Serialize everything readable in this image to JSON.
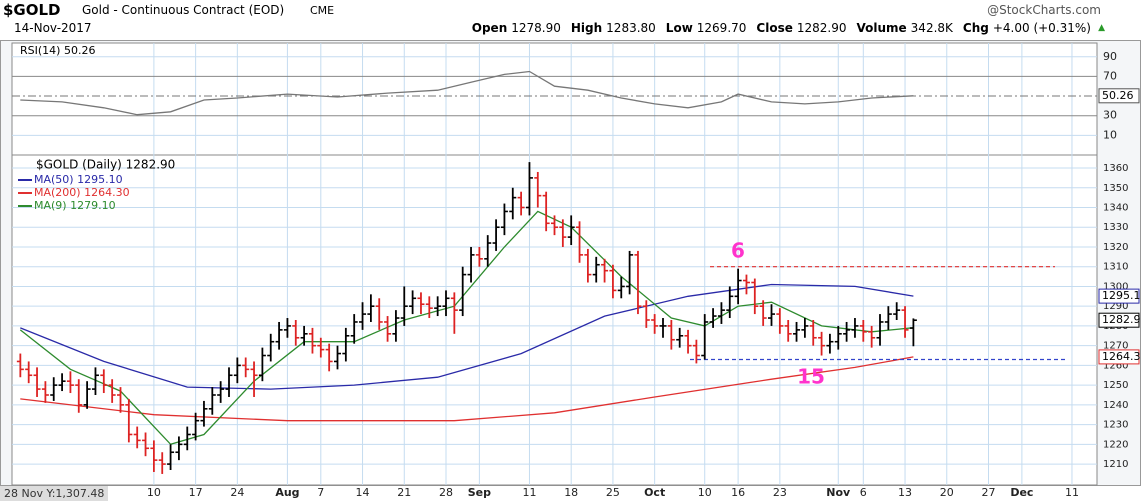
{
  "header": {
    "symbol": "$GOLD",
    "name": "Gold - Continuous Contract (EOD)",
    "exchange": "CME",
    "source": "@StockCharts.com",
    "date": "14-Nov-2017",
    "quote": [
      {
        "label": "Open",
        "value": "1278.90"
      },
      {
        "label": "High",
        "value": "1283.80"
      },
      {
        "label": "Low",
        "value": "1269.70"
      },
      {
        "label": "Close",
        "value": "1282.90"
      },
      {
        "label": "Volume",
        "value": "342.8K"
      },
      {
        "label": "Chg",
        "value": "+4.00 (+0.31%)"
      }
    ],
    "cursor": "28 Nov Y:1,307.48"
  },
  "chart_data": [
    {
      "type": "line",
      "title": "RSI(14) 50.26",
      "xlim": [
        -1,
        129
      ],
      "ylim": [
        -10,
        104
      ],
      "yticks": [
        90,
        70,
        50,
        30,
        10
      ],
      "grid": true,
      "series": [
        {
          "name": "RSI(14)",
          "color": "#777777",
          "tag": "50.26",
          "x": [
            0,
            5,
            10,
            14,
            18,
            22,
            26,
            32,
            38,
            44,
            50,
            54,
            58,
            61,
            64,
            68,
            72,
            76,
            80,
            84,
            86,
            90,
            94,
            98,
            102,
            107
          ],
          "values": [
            46,
            44,
            38,
            31,
            34,
            46,
            48,
            52,
            49,
            53,
            56,
            64,
            72,
            75,
            60,
            56,
            48,
            42,
            38,
            44,
            52,
            44,
            42,
            44,
            48,
            50.26
          ]
        }
      ]
    },
    {
      "type": "ohlc",
      "title": "$GOLD (Daily) 1282.90",
      "close_tag": "1282.9",
      "up_color": "#000000",
      "down_color": "#dd2222",
      "xlim": [
        -1,
        129
      ],
      "ylim": [
        1199.4,
        1366.6
      ],
      "yticks": [
        1360,
        1350,
        1340,
        1330,
        1320,
        1310,
        1300,
        1290,
        1280,
        1270,
        1260,
        1250,
        1240,
        1230,
        1220,
        1210
      ],
      "xticks": [
        {
          "value": 16,
          "label": "10"
        },
        {
          "value": 21,
          "label": "17"
        },
        {
          "value": 26,
          "label": "24"
        },
        {
          "value": 32,
          "label": "Aug"
        },
        {
          "value": 36,
          "label": "7"
        },
        {
          "value": 41,
          "label": "14"
        },
        {
          "value": 46,
          "label": "21"
        },
        {
          "value": 51,
          "label": "28"
        },
        {
          "value": 55,
          "label": "Sep"
        },
        {
          "value": 61,
          "label": "11"
        },
        {
          "value": 66,
          "label": "18"
        },
        {
          "value": 71,
          "label": "25"
        },
        {
          "value": 76,
          "label": "Oct"
        },
        {
          "value": 82,
          "label": "10"
        },
        {
          "value": 86,
          "label": "16"
        },
        {
          "value": 91,
          "label": "23"
        },
        {
          "value": 98,
          "label": "Nov"
        },
        {
          "value": 101,
          "label": "6"
        },
        {
          "value": 106,
          "label": "13"
        },
        {
          "value": 111,
          "label": "20"
        },
        {
          "value": 116,
          "label": "27"
        },
        {
          "value": 120,
          "label": "Dec"
        },
        {
          "value": 126,
          "label": "11"
        }
      ],
      "grid": true,
      "open": [
        1262,
        1258,
        1255,
        1248,
        1245,
        1250,
        1252,
        1250,
        1240,
        1248,
        1255,
        1250,
        1245,
        1240,
        1225,
        1222,
        1218,
        1212,
        1210,
        1216,
        1220,
        1225,
        1232,
        1238,
        1245,
        1248,
        1255,
        1260,
        1258,
        1255,
        1265,
        1272,
        1278,
        1280,
        1274,
        1276,
        1270,
        1268,
        1262,
        1266,
        1275,
        1282,
        1286,
        1290,
        1282,
        1276,
        1284,
        1290,
        1294,
        1291,
        1289,
        1290,
        1294,
        1288,
        1306,
        1316,
        1314,
        1322,
        1330,
        1338,
        1345,
        1340,
        1355,
        1346,
        1332,
        1330,
        1325,
        1330,
        1316,
        1306,
        1311,
        1308,
        1298,
        1300,
        1316,
        1290,
        1283,
        1280,
        1280,
        1273,
        1275,
        1270,
        1265,
        1282,
        1285,
        1288,
        1295,
        1303,
        1302,
        1290,
        1284,
        1286,
        1280,
        1276,
        1278,
        1280,
        1274,
        1270,
        1272,
        1276,
        1278,
        1280,
        1277,
        1274,
        1282,
        1286,
        1288,
        1278.9
      ],
      "high": [
        1266,
        1262,
        1259,
        1252,
        1254,
        1256,
        1257,
        1253,
        1252,
        1259,
        1258,
        1253,
        1249,
        1243,
        1229,
        1226,
        1222,
        1216,
        1220,
        1224,
        1229,
        1236,
        1242,
        1249,
        1252,
        1259,
        1264,
        1264,
        1262,
        1269,
        1276,
        1282,
        1284,
        1283,
        1280,
        1279,
        1274,
        1271,
        1270,
        1279,
        1286,
        1292,
        1296,
        1294,
        1285,
        1288,
        1300,
        1298,
        1297,
        1295,
        1295,
        1298,
        1297,
        1310,
        1320,
        1320,
        1326,
        1334,
        1342,
        1350,
        1348,
        1363,
        1358,
        1348,
        1336,
        1334,
        1336,
        1333,
        1319,
        1315,
        1314,
        1311,
        1305,
        1318,
        1318,
        1293,
        1286,
        1284,
        1283,
        1279,
        1278,
        1273,
        1286,
        1289,
        1292,
        1300,
        1309,
        1306,
        1304,
        1293,
        1291,
        1289,
        1283,
        1282,
        1284,
        1283,
        1277,
        1276,
        1280,
        1282,
        1284,
        1283,
        1280,
        1286,
        1290,
        1292,
        1290,
        1283.8
      ],
      "low": [
        1254,
        1251,
        1244,
        1241,
        1242,
        1247,
        1246,
        1236,
        1238,
        1245,
        1246,
        1241,
        1236,
        1221,
        1218,
        1214,
        1206,
        1205,
        1207,
        1212,
        1217,
        1222,
        1229,
        1235,
        1241,
        1244,
        1251,
        1254,
        1244,
        1252,
        1262,
        1268,
        1274,
        1270,
        1270,
        1266,
        1264,
        1257,
        1258,
        1262,
        1271,
        1278,
        1282,
        1278,
        1272,
        1272,
        1280,
        1286,
        1286,
        1284,
        1285,
        1285,
        1276,
        1285,
        1302,
        1310,
        1310,
        1318,
        1326,
        1334,
        1336,
        1336,
        1340,
        1328,
        1326,
        1320,
        1321,
        1312,
        1302,
        1302,
        1302,
        1294,
        1294,
        1296,
        1286,
        1279,
        1276,
        1274,
        1268,
        1269,
        1266,
        1261,
        1263,
        1279,
        1281,
        1284,
        1291,
        1296,
        1286,
        1280,
        1280,
        1276,
        1272,
        1272,
        1274,
        1270,
        1265,
        1266,
        1268,
        1272,
        1274,
        1272,
        1269,
        1270,
        1278,
        1283,
        1274,
        1269.7
      ],
      "close": [
        1258,
        1255,
        1248,
        1245,
        1250,
        1252,
        1250,
        1240,
        1248,
        1255,
        1250,
        1245,
        1240,
        1225,
        1222,
        1218,
        1212,
        1210,
        1216,
        1220,
        1225,
        1232,
        1238,
        1245,
        1248,
        1255,
        1260,
        1258,
        1255,
        1265,
        1272,
        1278,
        1280,
        1274,
        1276,
        1270,
        1268,
        1262,
        1266,
        1275,
        1282,
        1286,
        1290,
        1282,
        1276,
        1284,
        1290,
        1294,
        1291,
        1289,
        1290,
        1294,
        1288,
        1306,
        1316,
        1314,
        1322,
        1330,
        1338,
        1345,
        1340,
        1355,
        1346,
        1332,
        1330,
        1325,
        1330,
        1316,
        1306,
        1311,
        1308,
        1298,
        1300,
        1316,
        1290,
        1283,
        1280,
        1280,
        1273,
        1275,
        1270,
        1265,
        1282,
        1285,
        1288,
        1295,
        1303,
        1302,
        1290,
        1284,
        1286,
        1280,
        1276,
        1278,
        1280,
        1274,
        1270,
        1272,
        1276,
        1278,
        1280,
        1277,
        1274,
        1282,
        1286,
        1288,
        1278,
        1282.9
      ],
      "series": [
        {
          "name": "MA(50) 1295.10",
          "color": "#2a2aa8",
          "tag": "1295.1",
          "x": [
            0,
            10,
            20,
            30,
            40,
            50,
            60,
            70,
            80,
            90,
            100,
            107
          ],
          "values": [
            1279,
            1262,
            1249,
            1248,
            1250,
            1254,
            1266,
            1285,
            1295,
            1301,
            1300,
            1295.1
          ]
        },
        {
          "name": "MA(200) 1264.30",
          "color": "#e03030",
          "tag": "1264.3",
          "x": [
            0,
            16,
            32,
            52,
            64,
            76,
            90,
            100,
            107
          ],
          "values": [
            1243,
            1235,
            1232,
            1232,
            1236,
            1244,
            1253,
            1259,
            1264.3
          ]
        },
        {
          "name": "MA(9) 1279.10",
          "color": "#2e8b2e",
          "x": [
            0,
            6,
            12,
            18,
            22,
            28,
            34,
            40,
            46,
            52,
            58,
            62,
            66,
            72,
            78,
            82,
            86,
            90,
            96,
            102,
            107
          ],
          "values": [
            1278,
            1258,
            1247,
            1220,
            1225,
            1252,
            1272,
            1272,
            1283,
            1290,
            1320,
            1338,
            1330,
            1305,
            1284,
            1280,
            1290,
            1292,
            1280,
            1277,
            1279.1
          ]
        }
      ],
      "levels": [
        {
          "value": 1310,
          "color": "#e03030"
        },
        {
          "value": 1263,
          "color": "#3344cc"
        }
      ],
      "annotations": [
        {
          "text": "6",
          "color": "#ff33cc"
        },
        {
          "text": "15",
          "color": "#ff33cc"
        }
      ]
    }
  ]
}
